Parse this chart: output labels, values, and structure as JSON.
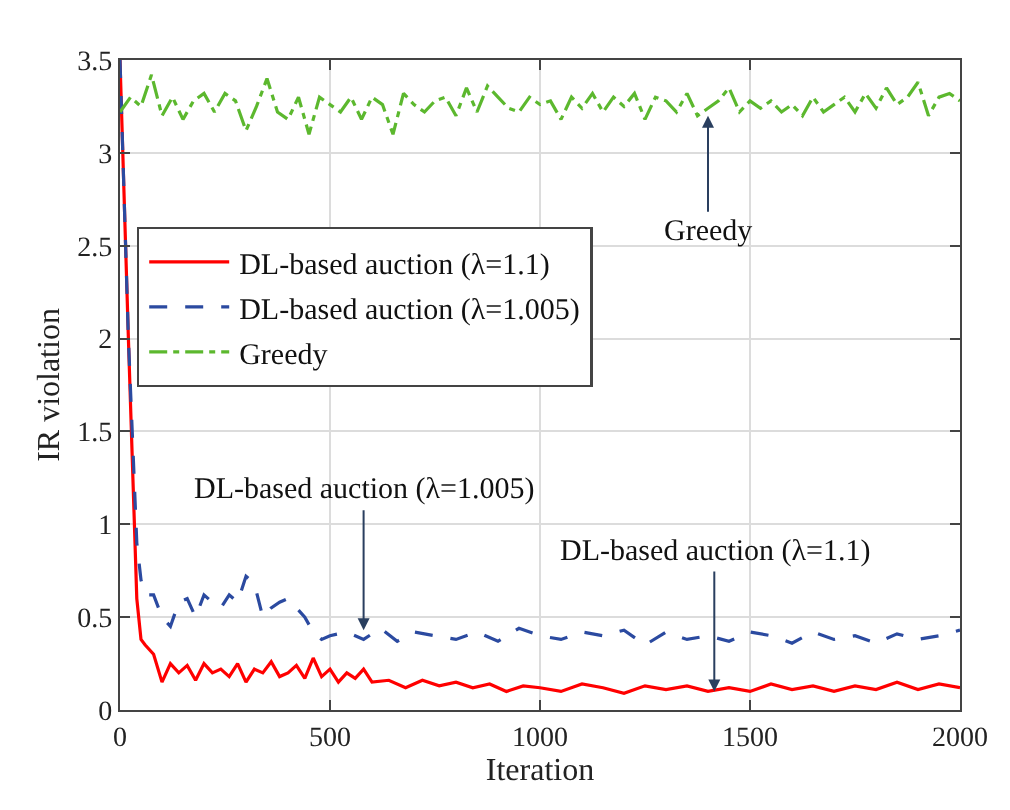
{
  "chart_data": {
    "type": "line",
    "xlabel": "Iteration",
    "ylabel": "IR violation",
    "xlim": [
      0,
      2000
    ],
    "ylim": [
      0,
      3.5
    ],
    "xticks": [
      0,
      500,
      1000,
      1500,
      2000
    ],
    "yticks": [
      0,
      0.5,
      1,
      1.5,
      2,
      2.5,
      3,
      3.5
    ],
    "grid": true,
    "legend": "left",
    "marker": "none",
    "series": [
      {
        "name": "DL-based auction (λ=1.1)",
        "color": "#ff0000",
        "line_style": "solid",
        "x": [
          0,
          20,
          40,
          50,
          60,
          80,
          100,
          120,
          140,
          160,
          180,
          200,
          220,
          240,
          260,
          280,
          300,
          320,
          340,
          360,
          380,
          400,
          420,
          440,
          460,
          480,
          500,
          520,
          540,
          560,
          580,
          600,
          640,
          680,
          720,
          760,
          800,
          840,
          880,
          920,
          960,
          1000,
          1050,
          1100,
          1150,
          1200,
          1250,
          1300,
          1350,
          1400,
          1450,
          1500,
          1550,
          1600,
          1650,
          1700,
          1750,
          1800,
          1850,
          1900,
          1950,
          2000
        ],
        "values": [
          3.5,
          2.0,
          0.6,
          0.38,
          0.35,
          0.3,
          0.15,
          0.25,
          0.2,
          0.24,
          0.16,
          0.25,
          0.2,
          0.22,
          0.18,
          0.25,
          0.15,
          0.22,
          0.2,
          0.26,
          0.18,
          0.2,
          0.24,
          0.17,
          0.28,
          0.18,
          0.22,
          0.15,
          0.2,
          0.17,
          0.22,
          0.15,
          0.16,
          0.12,
          0.16,
          0.13,
          0.15,
          0.12,
          0.14,
          0.1,
          0.13,
          0.12,
          0.1,
          0.14,
          0.12,
          0.09,
          0.13,
          0.11,
          0.13,
          0.1,
          0.12,
          0.1,
          0.14,
          0.11,
          0.13,
          0.1,
          0.13,
          0.11,
          0.15,
          0.11,
          0.14,
          0.12
        ]
      },
      {
        "name": "DL-based auction (λ=1.005)",
        "color": "#2b4aa0",
        "line_style": "dashed",
        "x": [
          0,
          20,
          40,
          50,
          60,
          80,
          100,
          120,
          140,
          160,
          180,
          200,
          220,
          240,
          260,
          280,
          300,
          320,
          340,
          360,
          380,
          400,
          420,
          440,
          460,
          480,
          500,
          540,
          580,
          620,
          660,
          700,
          750,
          800,
          850,
          900,
          950,
          1000,
          1050,
          1100,
          1150,
          1200,
          1250,
          1300,
          1350,
          1400,
          1450,
          1500,
          1550,
          1600,
          1650,
          1700,
          1750,
          1800,
          1850,
          1900,
          1950,
          2000
        ],
        "values": [
          3.5,
          2.0,
          0.9,
          0.7,
          0.62,
          0.62,
          0.5,
          0.45,
          0.58,
          0.6,
          0.5,
          0.62,
          0.58,
          0.55,
          0.62,
          0.58,
          0.72,
          0.68,
          0.5,
          0.55,
          0.58,
          0.6,
          0.55,
          0.5,
          0.42,
          0.38,
          0.4,
          0.42,
          0.38,
          0.44,
          0.37,
          0.42,
          0.4,
          0.38,
          0.42,
          0.37,
          0.44,
          0.4,
          0.38,
          0.42,
          0.4,
          0.43,
          0.35,
          0.42,
          0.38,
          0.4,
          0.37,
          0.42,
          0.4,
          0.36,
          0.42,
          0.38,
          0.4,
          0.36,
          0.41,
          0.38,
          0.4,
          0.43
        ]
      },
      {
        "name": "Greedy",
        "color": "#5cb82e",
        "line_style": "dotted",
        "x": [
          0,
          25,
          50,
          75,
          100,
          125,
          150,
          175,
          200,
          225,
          250,
          275,
          300,
          325,
          350,
          375,
          400,
          425,
          450,
          475,
          500,
          525,
          550,
          575,
          600,
          625,
          650,
          675,
          700,
          725,
          750,
          775,
          800,
          825,
          850,
          875,
          900,
          925,
          950,
          975,
          1000,
          1025,
          1050,
          1075,
          1100,
          1125,
          1150,
          1175,
          1200,
          1225,
          1250,
          1275,
          1300,
          1325,
          1350,
          1375,
          1400,
          1425,
          1450,
          1475,
          1500,
          1525,
          1550,
          1575,
          1600,
          1625,
          1650,
          1675,
          1700,
          1725,
          1750,
          1775,
          1800,
          1825,
          1850,
          1875,
          1900,
          1925,
          1950,
          1975,
          2000
        ],
        "values": [
          3.22,
          3.3,
          3.25,
          3.42,
          3.2,
          3.3,
          3.18,
          3.28,
          3.32,
          3.22,
          3.32,
          3.28,
          3.12,
          3.25,
          3.4,
          3.22,
          3.18,
          3.3,
          3.1,
          3.3,
          3.26,
          3.22,
          3.3,
          3.18,
          3.3,
          3.26,
          3.1,
          3.32,
          3.26,
          3.22,
          3.28,
          3.3,
          3.2,
          3.35,
          3.22,
          3.36,
          3.3,
          3.24,
          3.22,
          3.3,
          3.26,
          3.28,
          3.18,
          3.3,
          3.24,
          3.32,
          3.22,
          3.3,
          3.25,
          3.32,
          3.18,
          3.3,
          3.28,
          3.22,
          3.32,
          3.2,
          3.24,
          3.28,
          3.35,
          3.22,
          3.28,
          3.24,
          3.28,
          3.22,
          3.26,
          3.2,
          3.3,
          3.22,
          3.26,
          3.3,
          3.22,
          3.32,
          3.24,
          3.35,
          3.26,
          3.3,
          3.38,
          3.2,
          3.3,
          3.32,
          3.28
        ]
      }
    ],
    "annotations": [
      {
        "text": "Greedy",
        "x": 1400,
        "y": 3.2
      },
      {
        "text": "DL-based auction (λ=1.005)",
        "x": 580,
        "y": 0.43
      },
      {
        "text": "DL-based auction (λ=1.1)",
        "x": 1415,
        "y": 0.1
      }
    ]
  }
}
